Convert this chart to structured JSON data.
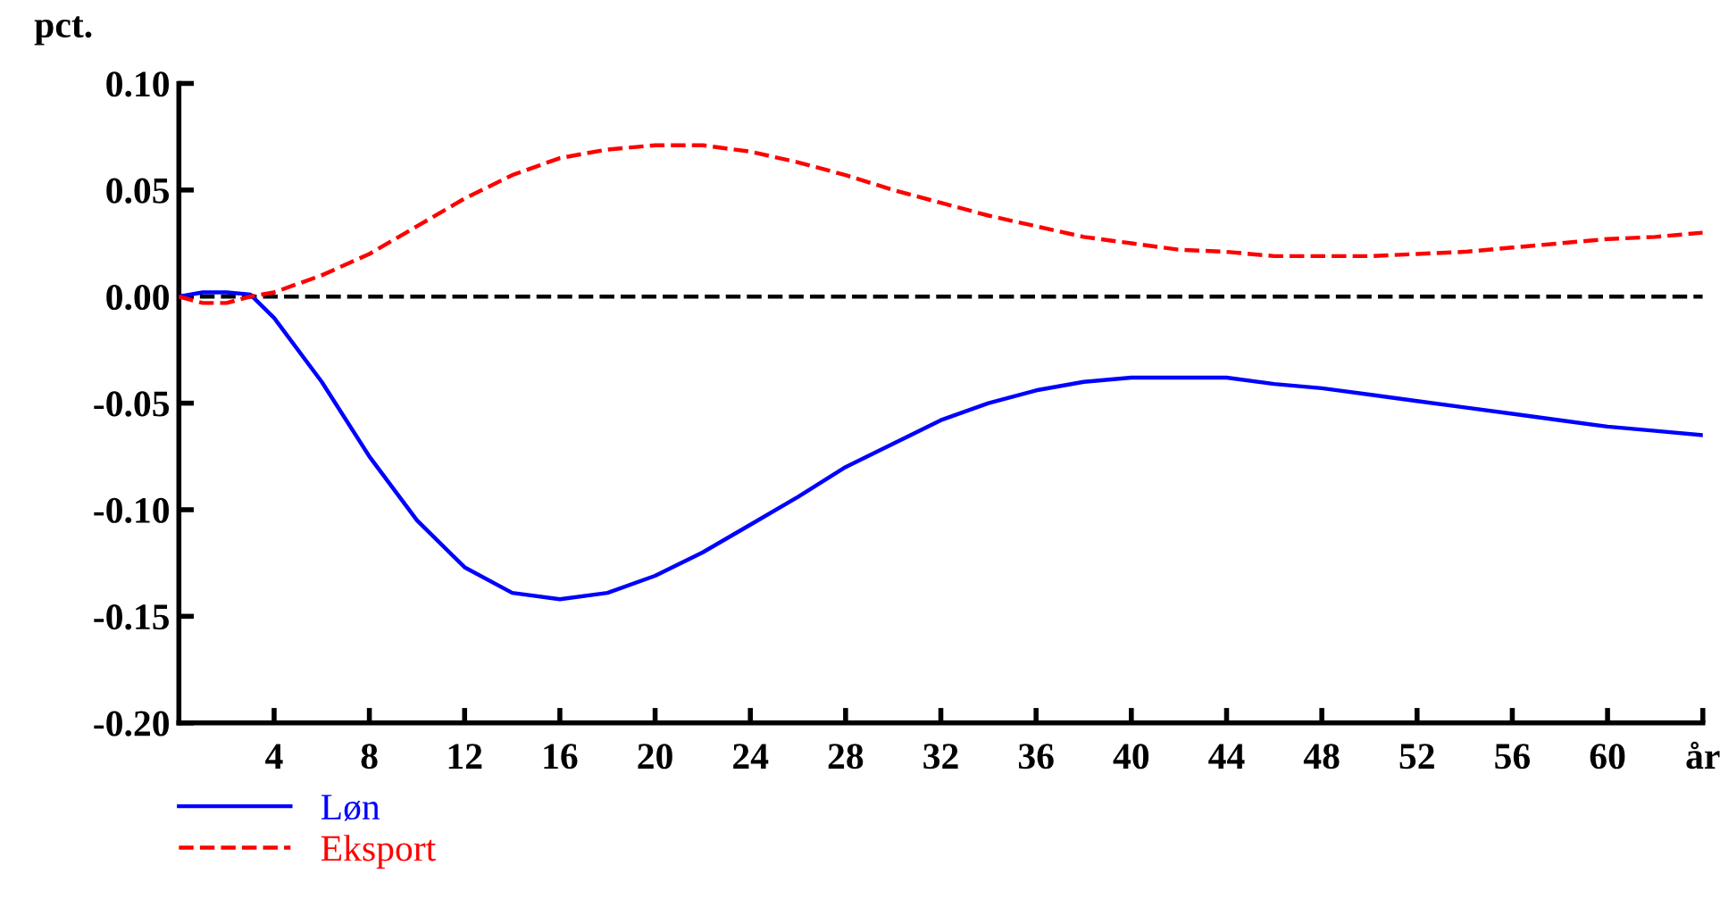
{
  "chart_data": {
    "type": "line",
    "ylabel": "pct.",
    "x": [
      0,
      1,
      2,
      3,
      4,
      6,
      8,
      10,
      12,
      14,
      16,
      18,
      20,
      22,
      24,
      26,
      28,
      30,
      32,
      34,
      36,
      38,
      40,
      42,
      44,
      46,
      48,
      50,
      52,
      54,
      56,
      58,
      60,
      62,
      64
    ],
    "series": [
      {
        "name": "Løn",
        "color": "#0000ff",
        "line_style": "solid",
        "values": [
          0,
          0.002,
          0.002,
          0.001,
          -0.01,
          -0.04,
          -0.075,
          -0.105,
          -0.127,
          -0.139,
          -0.142,
          -0.139,
          -0.131,
          -0.12,
          -0.107,
          -0.094,
          -0.08,
          -0.069,
          -0.058,
          -0.05,
          -0.044,
          -0.04,
          -0.038,
          -0.038,
          -0.038,
          -0.041,
          -0.043,
          -0.046,
          -0.049,
          -0.052,
          -0.055,
          -0.058,
          -0.061,
          -0.063,
          -0.065
        ]
      },
      {
        "name": "Eksport",
        "color": "#ff0000",
        "line_style": "dashed",
        "values": [
          0,
          -0.003,
          -0.003,
          0,
          0.002,
          0.01,
          0.02,
          0.033,
          0.046,
          0.057,
          0.065,
          0.069,
          0.071,
          0.071,
          0.068,
          0.063,
          0.057,
          0.05,
          0.044,
          0.038,
          0.033,
          0.028,
          0.025,
          0.022,
          0.021,
          0.019,
          0.019,
          0.019,
          0.02,
          0.021,
          0.023,
          0.025,
          0.027,
          0.028,
          0.03
        ]
      }
    ],
    "xlim": [
      0,
      64
    ],
    "xticks": [
      4,
      8,
      12,
      16,
      20,
      24,
      28,
      32,
      36,
      40,
      44,
      48,
      52,
      56,
      60,
      {
        "value": 64,
        "label": "år"
      }
    ],
    "ylim": [
      -0.2,
      0.1
    ],
    "yticks": [
      {
        "value": -0.2,
        "label": "-0.20"
      },
      {
        "value": -0.15,
        "label": "-0.15"
      },
      {
        "value": -0.1,
        "label": "-0.10"
      },
      {
        "value": -0.05,
        "label": "-0.05"
      },
      {
        "value": 0,
        "label": "0.00"
      },
      {
        "value": 0.05,
        "label": "0.05"
      },
      {
        "value": 0.1,
        "label": "0.10"
      }
    ],
    "ref_lines": [
      {
        "axis": "y",
        "value": 0,
        "color": "#000000",
        "line_style": "dashed"
      }
    ],
    "grid": false,
    "legend": "bottom left"
  }
}
